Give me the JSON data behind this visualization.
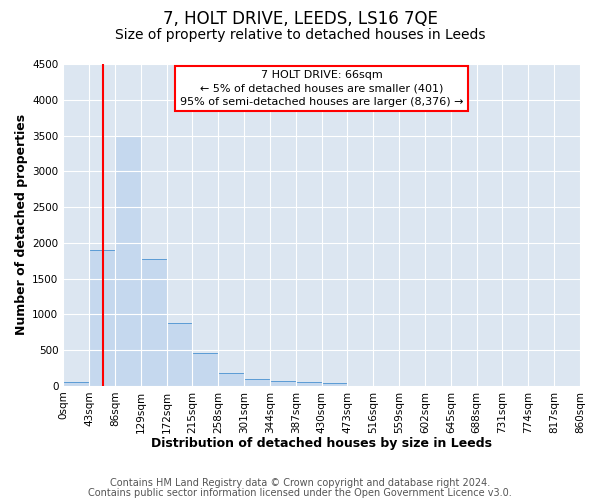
{
  "title": "7, HOLT DRIVE, LEEDS, LS16 7QE",
  "subtitle": "Size of property relative to detached houses in Leeds",
  "xlabel": "Distribution of detached houses by size in Leeds",
  "ylabel": "Number of detached properties",
  "bin_edges": [
    0,
    43,
    86,
    129,
    172,
    215,
    258,
    301,
    344,
    387,
    430,
    473,
    516,
    559,
    602,
    645,
    688,
    731,
    774,
    817,
    860
  ],
  "bin_labels": [
    "0sqm",
    "43sqm",
    "86sqm",
    "129sqm",
    "172sqm",
    "215sqm",
    "258sqm",
    "301sqm",
    "344sqm",
    "387sqm",
    "430sqm",
    "473sqm",
    "516sqm",
    "559sqm",
    "602sqm",
    "645sqm",
    "688sqm",
    "731sqm",
    "774sqm",
    "817sqm",
    "860sqm"
  ],
  "bar_heights": [
    50,
    1900,
    3500,
    1775,
    875,
    460,
    185,
    100,
    70,
    55,
    40,
    0,
    0,
    0,
    0,
    0,
    0,
    0,
    0,
    0
  ],
  "bar_color": "#c5d8ee",
  "bar_edgecolor": "#5b9bd5",
  "ylim": [
    0,
    4500
  ],
  "yticks": [
    0,
    500,
    1000,
    1500,
    2000,
    2500,
    3000,
    3500,
    4000,
    4500
  ],
  "red_line_x": 66,
  "annotation_line1": "7 HOLT DRIVE: 66sqm",
  "annotation_line2": "← 5% of detached houses are smaller (401)",
  "annotation_line3": "95% of semi-detached houses are larger (8,376) →",
  "footer_line1": "Contains HM Land Registry data © Crown copyright and database right 2024.",
  "footer_line2": "Contains public sector information licensed under the Open Government Licence v3.0.",
  "background_color": "#ffffff",
  "plot_bg_color": "#dce6f1",
  "grid_color": "#ffffff",
  "title_fontsize": 12,
  "subtitle_fontsize": 10,
  "axis_label_fontsize": 9,
  "tick_fontsize": 7.5,
  "footer_fontsize": 7
}
